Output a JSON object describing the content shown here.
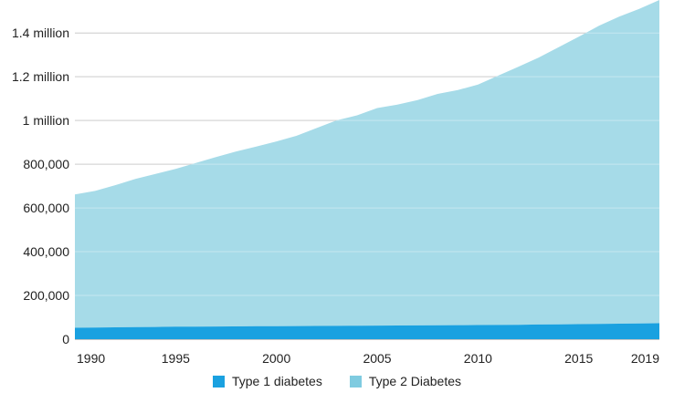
{
  "chart_data": {
    "type": "area",
    "stacked": true,
    "title": "",
    "xlabel": "",
    "ylabel": "",
    "x": [
      1990,
      1991,
      1992,
      1993,
      1994,
      1995,
      1996,
      1997,
      1998,
      1999,
      2000,
      2001,
      2002,
      2003,
      2004,
      2005,
      2006,
      2007,
      2008,
      2009,
      2010,
      2011,
      2012,
      2013,
      2014,
      2015,
      2016,
      2017,
      2018,
      2019
    ],
    "series": [
      {
        "name": "Type 1 diabetes",
        "color": "#1aa1e0",
        "values": [
          52000,
          53000,
          54000,
          55000,
          56000,
          57000,
          57500,
          58000,
          58500,
          59000,
          59500,
          60000,
          60500,
          61000,
          61500,
          62000,
          62500,
          63000,
          63500,
          64000,
          64500,
          65000,
          66000,
          67000,
          68000,
          69000,
          70000,
          71000,
          72000,
          73000
        ]
      },
      {
        "name": "Type 2 Diabetes",
        "color": "#a6dbe8",
        "values": [
          610000,
          625000,
          650000,
          678000,
          700000,
          722000,
          748000,
          775000,
          800000,
          822000,
          845000,
          870000,
          905000,
          940000,
          962000,
          995000,
          1010000,
          1030000,
          1058000,
          1075000,
          1100000,
          1140000,
          1180000,
          1220000,
          1267000,
          1314000,
          1363000,
          1404000,
          1438000,
          1478000
        ]
      }
    ],
    "y_ticks": [
      "0",
      "200,000",
      "400,000",
      "600,000",
      "800,000",
      "1 million",
      "1.2 million",
      "1.4 million"
    ],
    "y_tick_values": [
      0,
      200000,
      400000,
      600000,
      800000,
      1000000,
      1200000,
      1400000
    ],
    "x_ticks": [
      "1990",
      "1995",
      "2000",
      "2005",
      "2010",
      "2015",
      "2019"
    ],
    "x_tick_values": [
      1990,
      1995,
      2000,
      2005,
      2010,
      2015,
      2019
    ],
    "ylim": [
      0,
      1551000
    ],
    "grid": true,
    "legend_position": "bottom"
  }
}
